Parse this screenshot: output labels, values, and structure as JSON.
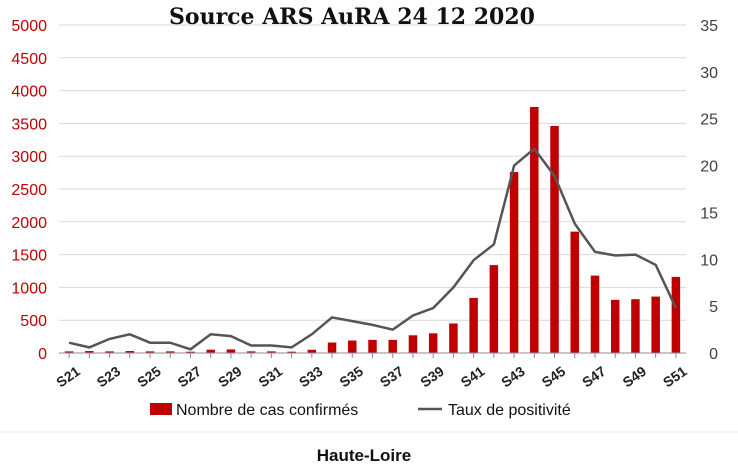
{
  "chart_data": {
    "type": "bar",
    "title": "Source ARS AuRA 24 12 2020",
    "caption": "Haute-Loire",
    "categories": [
      "S21",
      "S22",
      "S23",
      "S24",
      "S25",
      "S26",
      "S27",
      "S28",
      "S29",
      "S30",
      "S31",
      "S32",
      "S33",
      "S34",
      "S35",
      "S36",
      "S37",
      "S38",
      "S39",
      "S40",
      "S41",
      "S42",
      "S43",
      "S44",
      "S45",
      "S46",
      "S47",
      "S48",
      "S49",
      "S50",
      "S51"
    ],
    "xtick_labels": [
      "S21",
      "S23",
      "S25",
      "S27",
      "S29",
      "S31",
      "S33",
      "S35",
      "S37",
      "S39",
      "S41",
      "S43",
      "S45",
      "S47",
      "S49",
      "S51"
    ],
    "series": [
      {
        "name": "Nombre de cas confirmés",
        "type": "bar",
        "axis": "left",
        "color": "#c00000",
        "values": [
          25,
          30,
          25,
          30,
          25,
          25,
          20,
          50,
          55,
          25,
          25,
          20,
          50,
          160,
          190,
          200,
          200,
          270,
          300,
          450,
          840,
          1340,
          2760,
          3750,
          3460,
          1850,
          1180,
          810,
          820,
          860,
          1160
        ]
      },
      {
        "name": "Taux de positivité",
        "type": "line",
        "axis": "right",
        "color": "#555555",
        "values": [
          1.1,
          0.6,
          1.5,
          2.0,
          1.1,
          1.1,
          0.4,
          2.0,
          1.8,
          0.8,
          0.8,
          0.6,
          2.0,
          3.8,
          3.4,
          3.0,
          2.5,
          4.0,
          4.8,
          7.0,
          9.9,
          11.6,
          20.0,
          21.8,
          18.9,
          13.8,
          10.8,
          10.4,
          10.5,
          9.4,
          4.8
        ]
      }
    ],
    "y_left": {
      "ylim": [
        0,
        5000
      ],
      "ticks": [
        0,
        500,
        1000,
        1500,
        2000,
        2500,
        3000,
        3500,
        4000,
        4500,
        5000
      ],
      "color": "#c00000"
    },
    "y_right": {
      "ylim": [
        0,
        35
      ],
      "ticks": [
        0,
        5,
        10,
        15,
        20,
        25,
        30,
        35
      ],
      "color": "#404040"
    },
    "grid": "horizontal",
    "legend": "bottom"
  }
}
